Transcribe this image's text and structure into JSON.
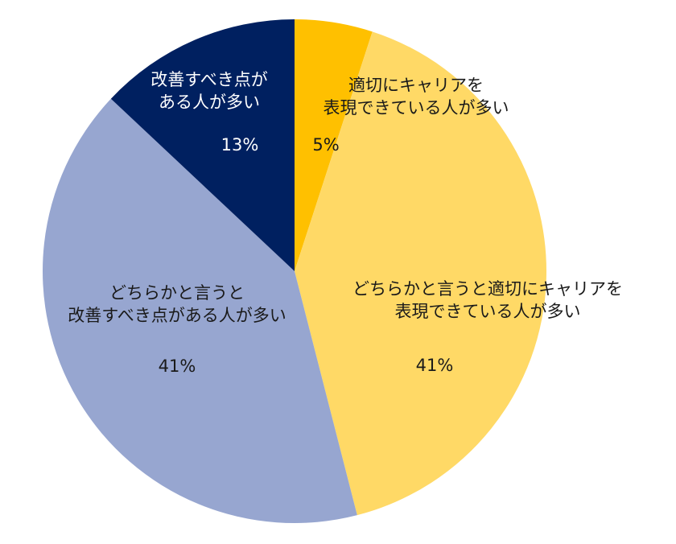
{
  "chart_data": {
    "type": "pie",
    "title": "",
    "start_angle": "12 o'clock, clockwise",
    "slices": [
      {
        "label": "適切にキャリアを表現できている人が多い",
        "label_lines": [
          "適切にキャリアを",
          "表現できている人が多い"
        ],
        "value": 5,
        "display": "5%",
        "color": "#FFC000"
      },
      {
        "label": "どちらかと言うと適切にキャリアを表現できている人が多い",
        "label_lines": [
          "どちらかと言うと適切にキャリアを",
          "表現できている人が多い"
        ],
        "value": 41,
        "display": "41%",
        "color": "#FFD966"
      },
      {
        "label": "どちらかと言うと改善すべき点がある人が多い",
        "label_lines": [
          "どちらかと言うと",
          "改善すべき点がある人が多い"
        ],
        "value": 41,
        "display": "41%",
        "color": "#97A6D0"
      },
      {
        "label": "改善すべき点がある人が多い",
        "label_lines": [
          "改善すべき点が",
          "ある人が多い"
        ],
        "value": 13,
        "display": "13%",
        "color": "#002060"
      }
    ],
    "legend": "none (data labels on slices)"
  }
}
